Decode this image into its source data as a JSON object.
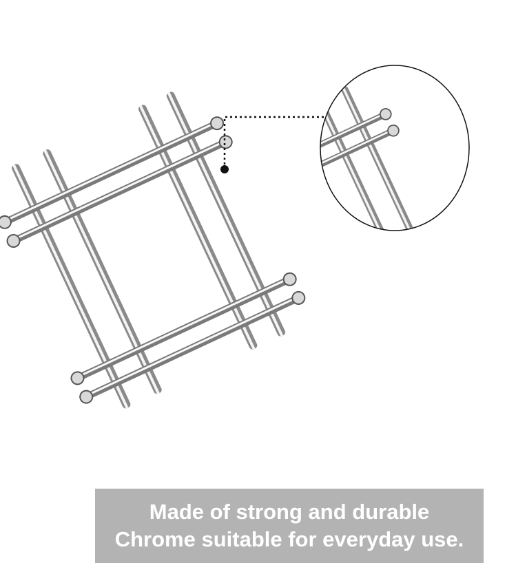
{
  "product": {
    "image_name": "chrome-wire-trivet",
    "material": "chrome",
    "colors": {
      "metal_light": "#f4f4f4",
      "metal_mid": "#c9c9c9",
      "metal_dark": "#6e6e6e",
      "outline": "#2b2b2b"
    }
  },
  "callout": {
    "type": "zoom-detail",
    "connector_style": "dotted"
  },
  "caption": {
    "line1": "Made of strong and durable",
    "line2": "Chrome suitable for everyday use.",
    "background": "#b3b3b3",
    "text_color": "#ffffff"
  }
}
